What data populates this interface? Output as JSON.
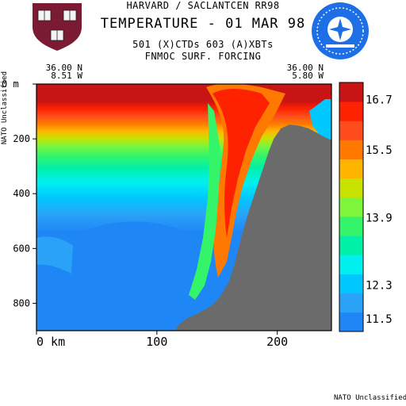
{
  "header": {
    "line1": "HARVARD / SACLANTCEN RR98",
    "title": "TEMPERATURE - 01 MAR 98",
    "line3": "501 (X)CTDs   603 (A)XBTs",
    "line4": "FNMOC SURF. FORCING"
  },
  "side_label": "NATO Unclassified",
  "footer_label": "NATO Unclassified",
  "endpoints": {
    "left": {
      "lat": "36.00 N",
      "lon": "8.51 W"
    },
    "right": {
      "lat": "36.00 N",
      "lon": "5.80 W"
    }
  },
  "colors": {
    "land": "#6b6b6b",
    "palette": [
      "#1f87f5",
      "#2aa2f7",
      "#00c8ff",
      "#00f0f0",
      "#00f0a8",
      "#34f56a",
      "#7ef53a",
      "#c8e200",
      "#ffb400",
      "#ff7800",
      "#ff4c1e",
      "#ff2200",
      "#c81414"
    ]
  },
  "icons": {
    "left_logo": "harvard-shield-icon",
    "right_logo": "nato-compass-icon"
  },
  "chart_data": {
    "type": "heatmap",
    "variable": "temperature",
    "xlabel": "km",
    "ylabel": "m",
    "xlim": [
      0,
      245
    ],
    "ylim": [
      900,
      0
    ],
    "x_ticks": [
      0,
      100,
      200
    ],
    "x_tick_labels": [
      "0 km",
      "100",
      "200"
    ],
    "y_ticks": [
      0,
      200,
      400,
      600,
      800
    ],
    "y_tick_labels": [
      "0 m",
      "200",
      "400",
      "600",
      "800"
    ],
    "colorbar": {
      "labels": [
        "16.7",
        "15.5",
        "13.9",
        "12.3",
        "11.5"
      ],
      "label_values": [
        16.7,
        15.5,
        13.9,
        12.3,
        11.5
      ],
      "min": 11.2,
      "max": 17.1,
      "n_bins": 13
    },
    "bathymetry": [
      [
        0,
        900
      ],
      [
        115,
        900
      ],
      [
        118,
        880
      ],
      [
        125,
        855
      ],
      [
        135,
        835
      ],
      [
        145,
        810
      ],
      [
        152,
        780
      ],
      [
        160,
        720
      ],
      [
        165,
        650
      ],
      [
        170,
        560
      ],
      [
        176,
        470
      ],
      [
        182,
        390
      ],
      [
        188,
        310
      ],
      [
        193,
        245
      ],
      [
        197,
        200
      ],
      [
        203,
        162
      ],
      [
        210,
        148
      ],
      [
        218,
        152
      ],
      [
        226,
        162
      ],
      [
        233,
        178
      ],
      [
        240,
        195
      ],
      [
        245,
        205
      ],
      [
        245,
        900
      ]
    ]
  }
}
